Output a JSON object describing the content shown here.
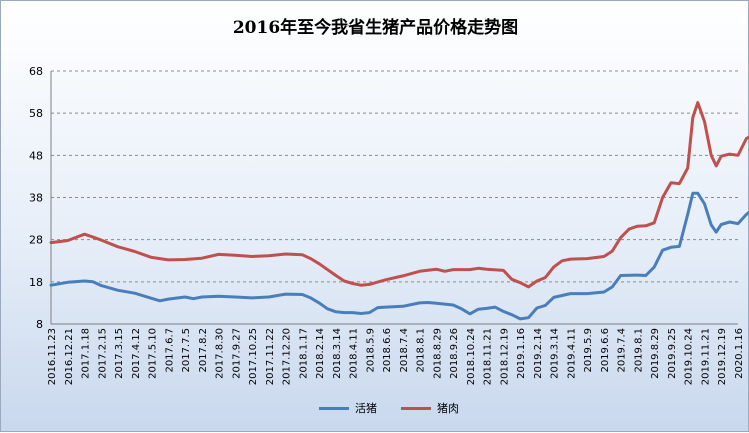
{
  "chart_data": {
    "type": "line",
    "title": "2016年至今我省生猪产品价格走势图",
    "xlabel": "",
    "ylabel": "",
    "ylim": [
      8,
      68
    ],
    "yticks": [
      8,
      18,
      28,
      38,
      48,
      58,
      68
    ],
    "grid": true,
    "legend_position": "bottom",
    "x_tick_labels": [
      "2016.11.23",
      "2016.12.21",
      "2017.1.18",
      "2017.2.15",
      "2017.3.15",
      "2017.4.12",
      "2017.5.10",
      "2017.6.7",
      "2017.7.5",
      "2017.8.2",
      "2017.8.30",
      "2017.9.27",
      "2017.10.25",
      "2017.11.22",
      "2017.12.20",
      "2018.1.17",
      "2018.2.14",
      "2018.3.14",
      "2018.4.11",
      "2018.5.9",
      "2018.6.6",
      "2018.7.4",
      "2018.8.1",
      "2018.8.29",
      "2018.9.26",
      "2018.10.24",
      "2018.11.21",
      "2018.12.19",
      "2019.1.16",
      "2019.2.14",
      "2019.3.14",
      "2019.4.11",
      "2019.5.9",
      "2019.6.6",
      "2019.7.4",
      "2019.8.1",
      "2019.8.29",
      "2019.9.25",
      "2019.10.24",
      "2019.11.21",
      "2019.12.19",
      "2020.1.16"
    ],
    "series": [
      {
        "name": "活猪",
        "color": "#4a7ebb",
        "points": [
          [
            0,
            17.2
          ],
          [
            1,
            17.9
          ],
          [
            2,
            18.2
          ],
          [
            2.5,
            18.0
          ],
          [
            3,
            17.1
          ],
          [
            4,
            16.0
          ],
          [
            5,
            15.3
          ],
          [
            6,
            14.1
          ],
          [
            6.5,
            13.5
          ],
          [
            7,
            13.9
          ],
          [
            8,
            14.4
          ],
          [
            8.5,
            14.0
          ],
          [
            9,
            14.4
          ],
          [
            10,
            14.6
          ],
          [
            11,
            14.4
          ],
          [
            12,
            14.2
          ],
          [
            13,
            14.4
          ],
          [
            14,
            15.1
          ],
          [
            15,
            15.0
          ],
          [
            15.5,
            14.2
          ],
          [
            16,
            13.0
          ],
          [
            16.5,
            11.6
          ],
          [
            17,
            10.9
          ],
          [
            17.5,
            10.7
          ],
          [
            18,
            10.7
          ],
          [
            18.5,
            10.5
          ],
          [
            19,
            10.7
          ],
          [
            19.5,
            11.9
          ],
          [
            20,
            12.0
          ],
          [
            21,
            12.2
          ],
          [
            22,
            13.0
          ],
          [
            22.5,
            13.1
          ],
          [
            23,
            12.9
          ],
          [
            24,
            12.5
          ],
          [
            24.5,
            11.6
          ],
          [
            25,
            10.4
          ],
          [
            25.5,
            11.5
          ],
          [
            26,
            11.7
          ],
          [
            26.5,
            12.0
          ],
          [
            27,
            11.0
          ],
          [
            27.5,
            10.2
          ],
          [
            28,
            9.2
          ],
          [
            28.5,
            9.5
          ],
          [
            29,
            11.8
          ],
          [
            29.5,
            12.4
          ],
          [
            30,
            14.3
          ],
          [
            31,
            15.2
          ],
          [
            32,
            15.2
          ],
          [
            33,
            15.6
          ],
          [
            33.5,
            16.8
          ],
          [
            34,
            19.5
          ],
          [
            35,
            19.6
          ],
          [
            35.5,
            19.5
          ],
          [
            36,
            21.5
          ],
          [
            36.5,
            25.5
          ],
          [
            37,
            26.2
          ],
          [
            37.5,
            26.4
          ],
          [
            38,
            34.0
          ],
          [
            38.3,
            39.0
          ],
          [
            38.6,
            39.0
          ],
          [
            39,
            36.5
          ],
          [
            39.4,
            31.5
          ],
          [
            39.7,
            29.8
          ],
          [
            40,
            31.6
          ],
          [
            40.5,
            32.2
          ],
          [
            41,
            31.8
          ],
          [
            41.5,
            34.0
          ],
          [
            42,
            35.5
          ]
        ]
      },
      {
        "name": "猪肉",
        "color": "#c0504d",
        "points": [
          [
            0,
            27.3
          ],
          [
            1,
            27.8
          ],
          [
            2,
            29.3
          ],
          [
            2.5,
            28.6
          ],
          [
            3,
            27.9
          ],
          [
            4,
            26.3
          ],
          [
            5,
            25.2
          ],
          [
            6,
            23.8
          ],
          [
            7,
            23.2
          ],
          [
            8,
            23.3
          ],
          [
            9,
            23.6
          ],
          [
            10,
            24.5
          ],
          [
            11,
            24.3
          ],
          [
            12,
            24.0
          ],
          [
            13,
            24.2
          ],
          [
            14,
            24.6
          ],
          [
            15,
            24.4
          ],
          [
            15.5,
            23.5
          ],
          [
            16,
            22.3
          ],
          [
            17,
            19.5
          ],
          [
            17.5,
            18.2
          ],
          [
            18,
            17.6
          ],
          [
            18.5,
            17.2
          ],
          [
            19,
            17.4
          ],
          [
            20,
            18.5
          ],
          [
            21,
            19.4
          ],
          [
            22,
            20.5
          ],
          [
            23,
            21.0
          ],
          [
            23.5,
            20.5
          ],
          [
            24,
            20.9
          ],
          [
            25,
            20.9
          ],
          [
            25.5,
            21.2
          ],
          [
            26,
            21.0
          ],
          [
            27,
            20.7
          ],
          [
            27.5,
            18.6
          ],
          [
            28,
            17.8
          ],
          [
            28.5,
            16.8
          ],
          [
            29,
            18.2
          ],
          [
            29.5,
            19.0
          ],
          [
            30,
            21.5
          ],
          [
            30.5,
            23.0
          ],
          [
            31,
            23.4
          ],
          [
            32,
            23.5
          ],
          [
            33,
            24.0
          ],
          [
            33.5,
            25.3
          ],
          [
            34,
            28.5
          ],
          [
            34.5,
            30.5
          ],
          [
            35,
            31.2
          ],
          [
            35.5,
            31.3
          ],
          [
            36,
            32.0
          ],
          [
            36.5,
            38.0
          ],
          [
            37,
            41.5
          ],
          [
            37.5,
            41.3
          ],
          [
            38,
            45.0
          ],
          [
            38.3,
            57.0
          ],
          [
            38.6,
            60.5
          ],
          [
            39,
            56.0
          ],
          [
            39.4,
            48.0
          ],
          [
            39.7,
            45.5
          ],
          [
            40,
            47.8
          ],
          [
            40.5,
            48.3
          ],
          [
            41,
            48.0
          ],
          [
            41.5,
            52.0
          ],
          [
            42,
            53.0
          ]
        ]
      }
    ]
  }
}
